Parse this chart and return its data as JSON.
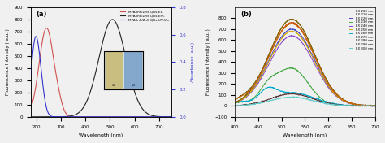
{
  "panel_a": {
    "title": "(a)",
    "xlabel": "Wavelength (nm)",
    "ylabel_left": "Fluorescence Intensity ( a.u. )",
    "ylabel_right": "Absorbance (a.u.)",
    "xlim": [
      175,
      750
    ],
    "ylim_left": [
      0,
      900
    ],
    "ylim_right": [
      0,
      0.8
    ],
    "xticks": [
      200,
      300,
      400,
      500,
      600,
      700
    ],
    "yticks_left": [
      0,
      100,
      200,
      300,
      400,
      500,
      600,
      700,
      800,
      900
    ],
    "yticks_right": [
      0.0,
      0.2,
      0.4,
      0.6,
      0.8
    ],
    "legend": [
      "MPA-InP/ZnS QDs-Ex.",
      "MPA-InP/ZnS QDs-Em.",
      "MPA-InP/ZnS QDs-UV-Vis"
    ],
    "legend_colors": [
      "#e06060",
      "#333333",
      "#4444cc"
    ]
  },
  "panel_b": {
    "title": "(b)",
    "xlabel": "Wavelength (nm)",
    "ylabel": "Fluorescence Intensity ( a.u. )",
    "xlim": [
      400,
      700
    ],
    "ylim": [
      -100,
      900
    ],
    "xticks": [
      400,
      450,
      500,
      550,
      600,
      650,
      700
    ],
    "yticks": [
      -100,
      0,
      100,
      200,
      300,
      400,
      500,
      600,
      700,
      800
    ],
    "ex_wavelengths": [
      200,
      210,
      220,
      230,
      240,
      250,
      260,
      270,
      280,
      290,
      300
    ],
    "ex_colors": [
      "#4d4d00",
      "#cc4400",
      "#4444cc",
      "#44aa44",
      "#8844cc",
      "#ccaa00",
      "#00aacc",
      "#553333",
      "#886600",
      "#cc6600",
      "#66cccc"
    ],
    "ex_labels": [
      "EX 200 nm",
      "EX 210 nm",
      "EX 220 nm",
      "EX 230 nm",
      "EX 240 nm",
      "EX 250 nm",
      "EX 260 nm",
      "EX 270 nm",
      "EX 280 nm",
      "EX 290 nm",
      "EX 300 nm"
    ]
  }
}
